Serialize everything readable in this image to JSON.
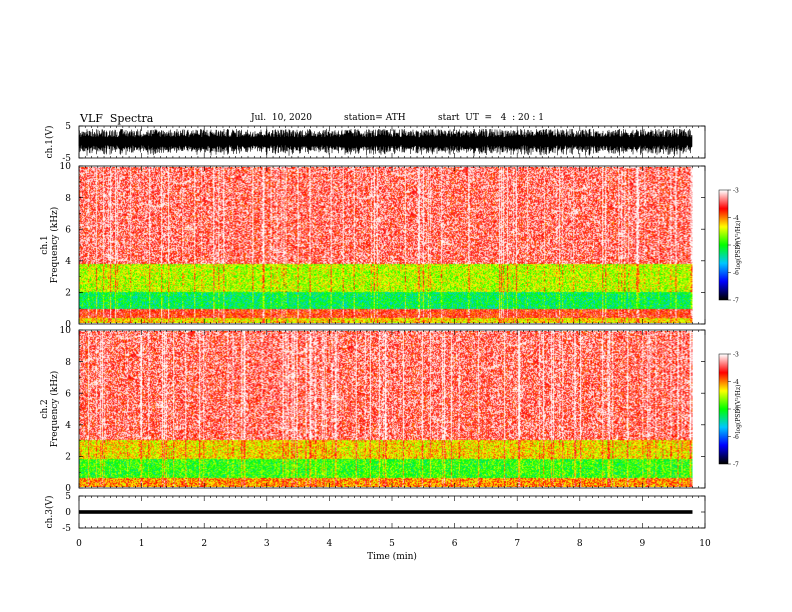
{
  "header": {
    "title": "VLF  Spectra",
    "date": "Jul.  10, 2020",
    "station": "station= ATH",
    "start": "start  UT  =   4  : 20 : 1"
  },
  "chart_data": [
    {
      "type": "line",
      "panel": "ch1-waveform",
      "ylabel": "ch.1(V)",
      "ylim": [
        -5,
        5
      ],
      "yticks": [
        "5",
        "-5"
      ],
      "x_range_min": [
        0,
        9.8
      ],
      "waveform_character": "dense broadband noise filling roughly -4 to 4 V"
    },
    {
      "type": "heatmap",
      "panel": "ch1-spectrogram",
      "ylabel": "ch.1\nFrequency  (kHz)",
      "ylim": [
        0,
        10
      ],
      "yticks": [
        "0",
        "2",
        "4",
        "6",
        "8",
        "10"
      ],
      "x_range_min": [
        0,
        9.8
      ],
      "colorbar": {
        "label": "log(PSD)(V²/Hz)",
        "ticks": [
          "-3",
          "-4",
          "-5",
          "-6",
          "-7"
        ],
        "range": [
          -7,
          -3
        ],
        "colors": [
          "#000000",
          "#0000ff",
          "#00c8ff",
          "#00ff00",
          "#ffff00",
          "#ff0000",
          "#ffffff"
        ]
      },
      "bands_khz": [
        {
          "from": 0,
          "to": 0.3,
          "level": "yellow"
        },
        {
          "from": 0.3,
          "to": 0.9,
          "level": "red"
        },
        {
          "from": 0.9,
          "to": 2.0,
          "level": "green-cyan"
        },
        {
          "from": 2.0,
          "to": 3.8,
          "level": "yellow-green"
        },
        {
          "from": 3.8,
          "to": 10,
          "level": "red-white"
        }
      ]
    },
    {
      "type": "heatmap",
      "panel": "ch2-spectrogram",
      "ylabel": "ch.2\nFrequency  (kHz)",
      "ylim": [
        0,
        10
      ],
      "yticks": [
        "0",
        "2",
        "4",
        "6",
        "8",
        "10"
      ],
      "x_range_min": [
        0,
        9.8
      ],
      "colorbar": {
        "label": "log(PSD)(V²/Hz)",
        "ticks": [
          "-3",
          "-4",
          "-5",
          "-6",
          "-7"
        ],
        "range": [
          -7,
          -3
        ]
      },
      "bands_khz": [
        {
          "from": 0,
          "to": 0.6,
          "level": "yellow-red"
        },
        {
          "from": 0.6,
          "to": 1.8,
          "level": "green"
        },
        {
          "from": 1.8,
          "to": 3.0,
          "level": "yellow"
        },
        {
          "from": 3.0,
          "to": 10,
          "level": "red-white"
        }
      ]
    },
    {
      "type": "line",
      "panel": "ch3-waveform",
      "ylabel": "ch.3(V)",
      "ylim": [
        -5,
        5
      ],
      "yticks": [
        "5",
        "0",
        "-5"
      ],
      "x_range_min": [
        0,
        9.8
      ],
      "waveform_character": "nearly flat thick trace around 0 V"
    }
  ],
  "x_axis": {
    "label": "Time  (min)",
    "ticks": [
      "0",
      "1",
      "2",
      "3",
      "4",
      "5",
      "6",
      "7",
      "8",
      "9",
      "10"
    ],
    "range": [
      0,
      10
    ]
  }
}
